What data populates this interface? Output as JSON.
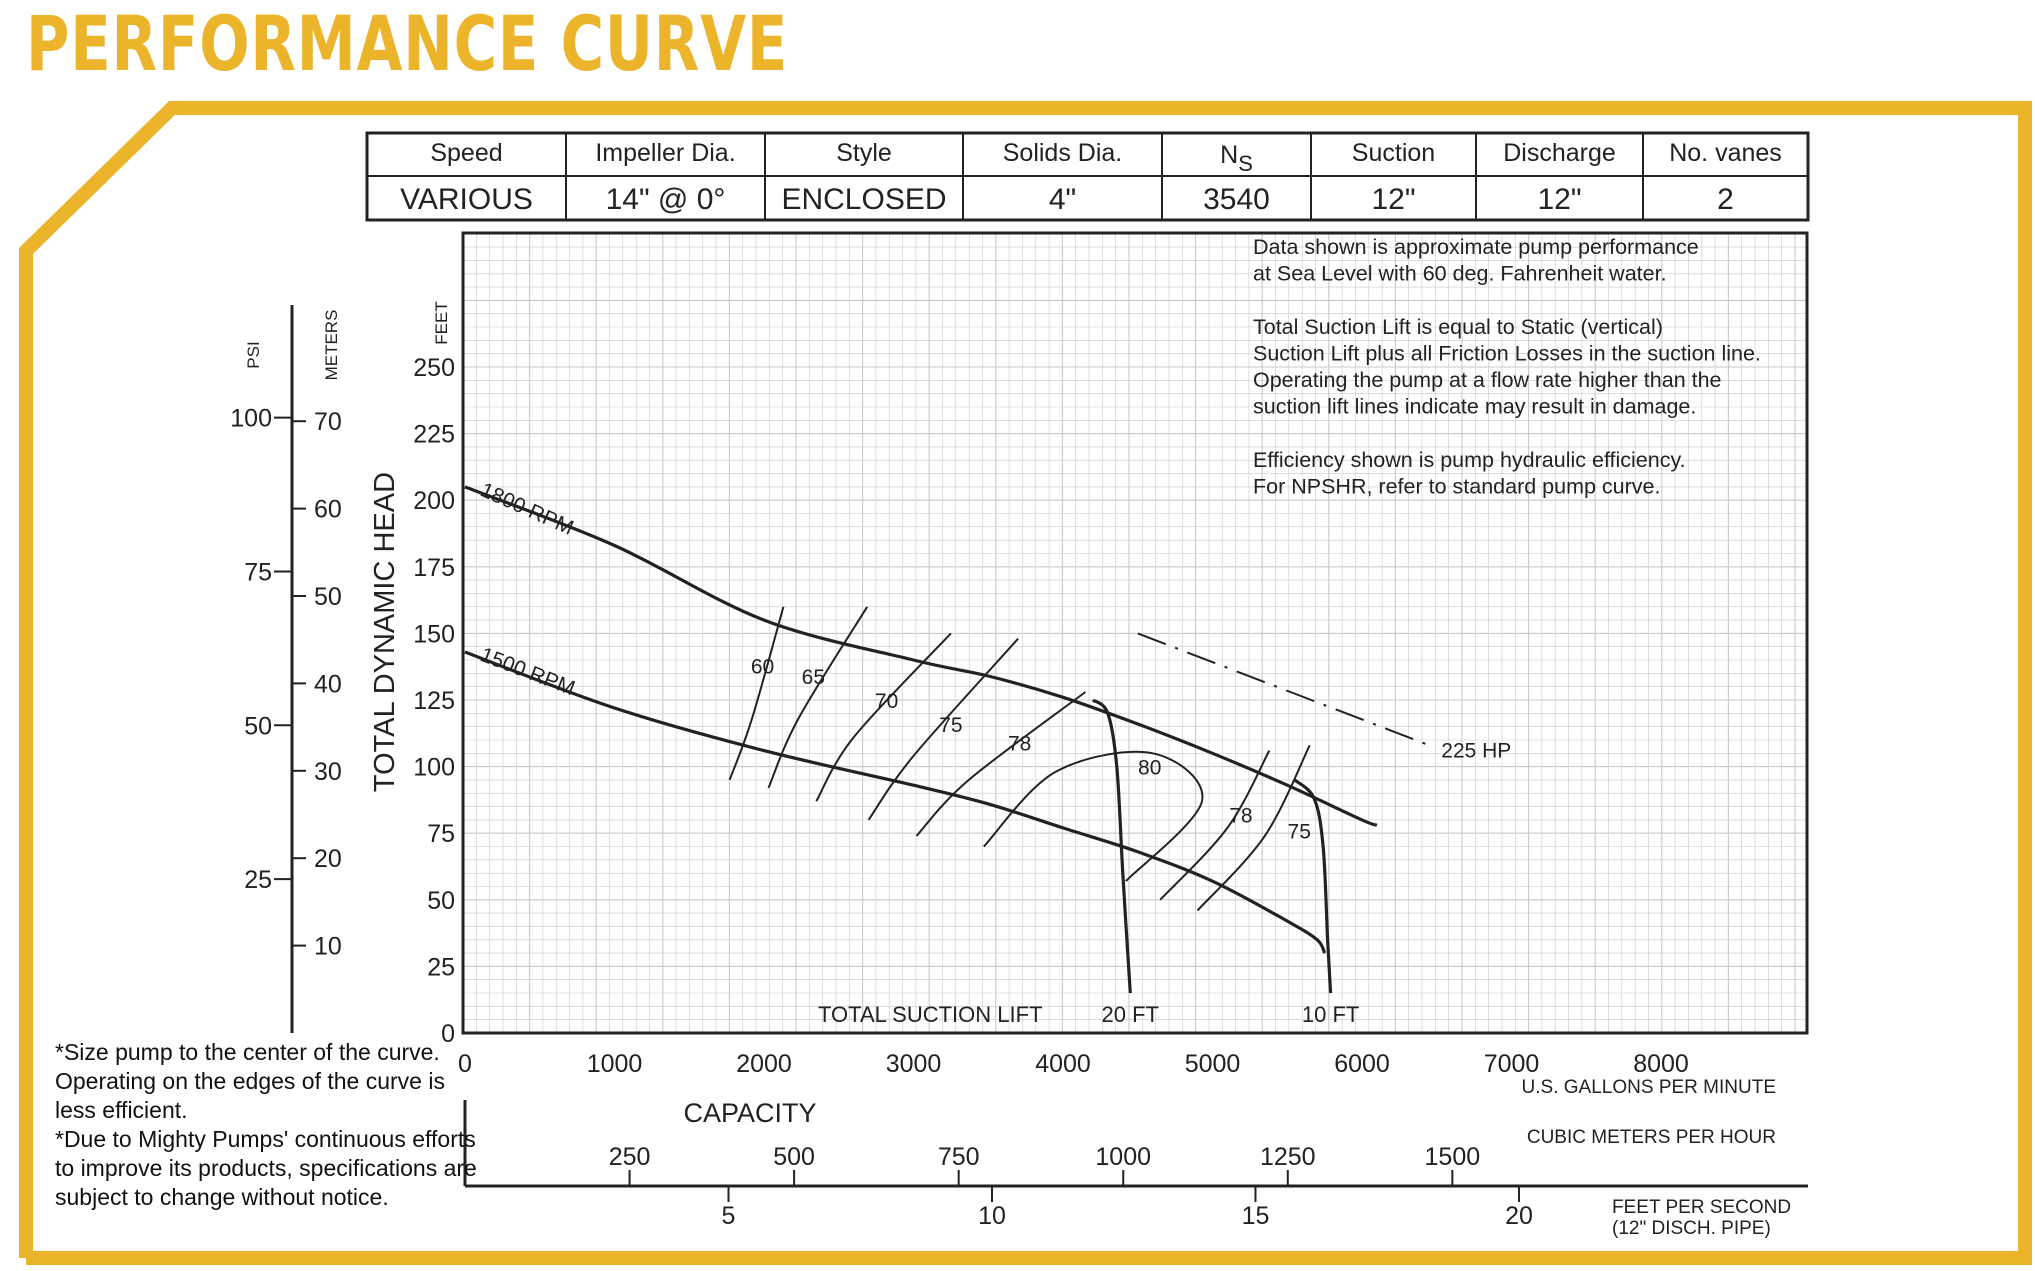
{
  "title": "PERFORMANCE CURVE",
  "colors": {
    "accent": "#ebb42a",
    "grid": "#c9c9c9",
    "line": "#222222"
  },
  "specs": {
    "headers": [
      "Speed",
      "Impeller Dia.",
      "Style",
      "Solids Dia.",
      "NS",
      "Suction",
      "Discharge",
      "No. vanes"
    ],
    "values": [
      "VARIOUS",
      "14\" @ 0°",
      "ENCLOSED",
      "4\"",
      "3540",
      "12\"",
      "12\"",
      "2"
    ]
  },
  "info_text": [
    "Data shown is approximate pump performance",
    "at Sea Level with 60 deg. Fahrenheit water.",
    "",
    "Total Suction Lift is equal to Static (vertical)",
    "Suction Lift plus all Friction Losses in the suction line.",
    "Operating the pump at a flow rate higher than the",
    "suction lift lines indicate may result in damage.",
    "",
    "Efficiency shown is pump hydraulic efficiency.",
    "For NPSHR, refer to standard pump curve."
  ],
  "notes": [
    "*Size pump to the center of the curve.",
    "Operating on the edges of the curve is",
    "less efficient.",
    "*Due to Mighty Pumps' continuous efforts",
    "to improve its products, specifications are",
    "subject to change without notice."
  ],
  "chart_data": {
    "type": "line",
    "title": "",
    "xlabel": "CAPACITY",
    "ylabel": "TOTAL DYNAMIC HEAD",
    "x_unit": "U.S. GALLONS PER MINUTE",
    "y_unit": "FEET",
    "xlim": [
      0,
      9000
    ],
    "ylim": [
      0,
      300
    ],
    "x_ticks": [
      0,
      1000,
      2000,
      3000,
      4000,
      5000,
      6000,
      7000,
      8000
    ],
    "y_ticks": [
      0,
      25,
      50,
      75,
      100,
      125,
      150,
      175,
      200,
      225,
      250
    ],
    "grid": true,
    "series": [
      {
        "name": "1800 RPM",
        "x": [
          0,
          1000,
          2000,
          3000,
          3500,
          4000,
          4500,
          5000,
          5500,
          6000,
          6100
        ],
        "y": [
          205,
          183,
          155,
          140,
          134,
          126,
          116,
          105,
          93,
          80,
          78
        ]
      },
      {
        "name": "1500 RPM",
        "x": [
          0,
          1000,
          2000,
          3000,
          3500,
          4000,
          4500,
          5000,
          5500,
          5700,
          5750
        ],
        "y": [
          143,
          122,
          106,
          93,
          86,
          77,
          68,
          57,
          42,
          35,
          30
        ]
      }
    ],
    "suction_lift_label": "TOTAL SUCTION LIFT",
    "suction_lift": [
      {
        "label": "20 FT",
        "x": [
          4200,
          4300,
          4360,
          4400,
          4450
        ],
        "y": [
          125,
          120,
          100,
          60,
          15
        ]
      },
      {
        "label": "10 FT",
        "x": [
          5550,
          5680,
          5740,
          5770,
          5790
        ],
        "y": [
          95,
          88,
          70,
          35,
          15
        ]
      }
    ],
    "efficiency_labels": [
      "60",
      "65",
      "70",
      "75",
      "78",
      "80",
      "78",
      "75"
    ],
    "efficiency_label_pos": [
      {
        "x": 1990,
        "y": 135
      },
      {
        "x": 2330,
        "y": 131
      },
      {
        "x": 2820,
        "y": 122
      },
      {
        "x": 3250,
        "y": 113
      },
      {
        "x": 3710,
        "y": 106
      },
      {
        "x": 4580,
        "y": 97
      },
      {
        "x": 5190,
        "y": 79
      },
      {
        "x": 5580,
        "y": 73
      }
    ],
    "efficiency_arcs": [
      [
        [
          1770,
          95
        ],
        [
          1920,
          118
        ],
        [
          2130,
          160
        ]
      ],
      [
        [
          2030,
          92
        ],
        [
          2230,
          118
        ],
        [
          2690,
          160
        ]
      ],
      [
        [
          2350,
          87
        ],
        [
          2600,
          111
        ],
        [
          3250,
          150
        ]
      ],
      [
        [
          2700,
          80
        ],
        [
          3000,
          104
        ],
        [
          3700,
          148
        ]
      ],
      [
        [
          3020,
          74
        ],
        [
          3370,
          95
        ],
        [
          4150,
          128
        ]
      ],
      [
        [
          3470,
          70
        ],
        [
          3950,
          98
        ],
        [
          4600,
          105
        ],
        [
          4930,
          87
        ],
        [
          4420,
          57
        ]
      ],
      [
        [
          4650,
          50
        ],
        [
          5100,
          77
        ],
        [
          5380,
          106
        ]
      ],
      [
        [
          4900,
          46
        ],
        [
          5350,
          74
        ],
        [
          5650,
          108
        ]
      ]
    ],
    "hp_line": {
      "label": "225 HP",
      "x": [
        4500,
        6450
      ],
      "y": [
        150,
        108
      ]
    },
    "secondary_axes": {
      "psi": {
        "label": "PSI",
        "ticks": [
          25,
          50,
          75,
          100
        ]
      },
      "meters": {
        "label": "METERS",
        "ticks": [
          10,
          20,
          30,
          40,
          50,
          60,
          70
        ]
      },
      "cubic_meters_per_hour": {
        "label": "CUBIC METERS PER HOUR",
        "ticks": [
          250,
          500,
          750,
          1000,
          1250,
          1500
        ]
      },
      "feet_per_second": {
        "label": "FEET PER SECOND",
        "sublabel": "(12\" DISCH. PIPE)",
        "ticks": [
          5,
          10,
          15,
          20
        ]
      }
    }
  }
}
